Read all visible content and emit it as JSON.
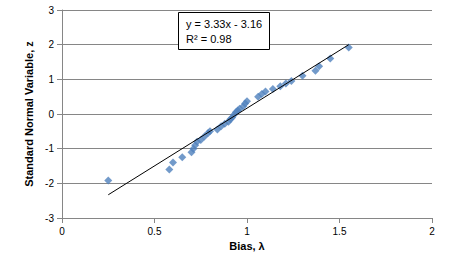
{
  "chart_data": {
    "type": "scatter",
    "x_label": "Bias, λ",
    "y_label": "Standard Normal Variable, z",
    "annotations": [
      "y = 3.33x - 3.16",
      "R² = 0.98"
    ],
    "xlim": [
      0,
      2
    ],
    "xticks": [
      0,
      0.5,
      1,
      1.5,
      2
    ],
    "ylim": [
      -3,
      3
    ],
    "yticks": [
      -3,
      -2,
      -1,
      0,
      1,
      2,
      3
    ],
    "grid": true,
    "series": [
      {
        "type": "scatter",
        "marker": "diamond",
        "color": "#4f81bd",
        "x": [
          0.25,
          0.58,
          0.6,
          0.65,
          0.7,
          0.71,
          0.72,
          0.73,
          0.75,
          0.77,
          0.79,
          0.8,
          0.84,
          0.86,
          0.88,
          0.9,
          0.91,
          0.92,
          0.93,
          0.94,
          0.95,
          0.96,
          0.98,
          0.99,
          1.0,
          1.06,
          1.08,
          1.1,
          1.14,
          1.18,
          1.21,
          1.24,
          1.3,
          1.37,
          1.39,
          1.45,
          1.55
        ],
        "values": [
          -1.92,
          -1.6,
          -1.4,
          -1.25,
          -1.1,
          -1.0,
          -0.9,
          -0.8,
          -0.75,
          -0.65,
          -0.55,
          -0.5,
          -0.45,
          -0.35,
          -0.28,
          -0.22,
          -0.15,
          -0.1,
          -0.02,
          0.05,
          0.1,
          0.15,
          0.22,
          0.3,
          0.37,
          0.5,
          0.58,
          0.65,
          0.72,
          0.8,
          0.88,
          0.95,
          1.1,
          1.25,
          1.38,
          1.6,
          1.92
        ]
      },
      {
        "type": "line",
        "line_style": "solid",
        "color": "#000000",
        "x": [
          0.25,
          1.55
        ],
        "values": [
          -2.33,
          2.0
        ]
      }
    ]
  }
}
